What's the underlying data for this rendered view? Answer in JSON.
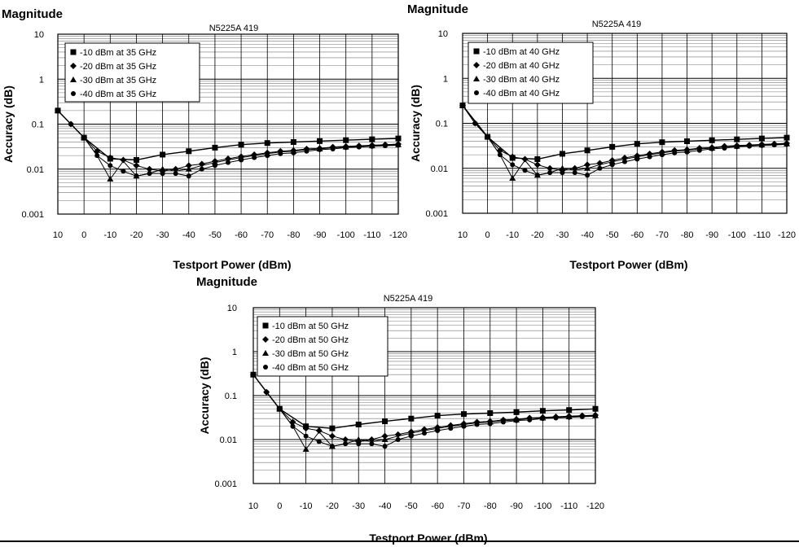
{
  "chart_data": [
    {
      "type": "line",
      "heading": "Magnitude",
      "title": "N5225A 419",
      "xlabel": "Testport Power (dBm)",
      "ylabel": "Accuracy (dB)",
      "x_ticks": [
        "10",
        "0",
        "-10",
        "-20",
        "-30",
        "-40",
        "-50",
        "-60",
        "-70",
        "-80",
        "-90",
        "-100",
        "-110",
        "-120"
      ],
      "y_scale": "log",
      "y_ticks": [
        "10",
        "1",
        "0.1",
        "0.01",
        "0.001"
      ],
      "xlim": [
        10,
        -120
      ],
      "ylim": [
        0.001,
        10
      ],
      "grid": true,
      "legend_position": "top-left",
      "series": [
        {
          "name": "-10 dBm at 35 GHz",
          "marker": "square",
          "x": [
            10,
            0,
            -10,
            -20,
            -30,
            -40,
            -50,
            -60,
            -70,
            -80,
            -90,
            -100,
            -110,
            -120
          ],
          "y": [
            0.2,
            0.05,
            0.017,
            0.016,
            0.021,
            0.025,
            0.03,
            0.035,
            0.038,
            0.04,
            0.042,
            0.044,
            0.046,
            0.048
          ]
        },
        {
          "name": "-20 dBm at 35 GHz",
          "marker": "diamond",
          "x": [
            10,
            5,
            0,
            -5,
            -10,
            -15,
            -20,
            -25,
            -30,
            -35,
            -40,
            -45,
            -50,
            -55,
            -60,
            -65,
            -70,
            -75,
            -80,
            -85,
            -90,
            -95,
            -100,
            -105,
            -110,
            -115,
            -120
          ],
          "y": [
            0.2,
            0.1,
            0.05,
            0.025,
            0.018,
            0.016,
            0.012,
            0.01,
            0.009,
            0.01,
            0.012,
            0.013,
            0.015,
            0.017,
            0.019,
            0.021,
            0.023,
            0.025,
            0.026,
            0.028,
            0.029,
            0.031,
            0.032,
            0.033,
            0.034,
            0.035,
            0.036
          ]
        },
        {
          "name": "-30 dBm at 35 GHz",
          "marker": "triangle",
          "x": [
            10,
            5,
            0,
            -5,
            -10,
            -15,
            -20,
            -25,
            -30,
            -35,
            -40,
            -45,
            -50,
            -55,
            -60,
            -65,
            -70,
            -75,
            -80,
            -85,
            -90,
            -95,
            -100,
            -105,
            -110,
            -115,
            -120
          ],
          "y": [
            0.2,
            0.1,
            0.05,
            0.02,
            0.006,
            0.015,
            0.007,
            0.008,
            0.01,
            0.009,
            0.01,
            0.012,
            0.014,
            0.016,
            0.018,
            0.02,
            0.022,
            0.024,
            0.025,
            0.027,
            0.028,
            0.03,
            0.031,
            0.032,
            0.033,
            0.034,
            0.035
          ]
        },
        {
          "name": "-40 dBm at 35 GHz",
          "marker": "circle",
          "x": [
            10,
            5,
            0,
            -5,
            -10,
            -15,
            -20,
            -25,
            -30,
            -35,
            -40,
            -45,
            -50,
            -55,
            -60,
            -65,
            -70,
            -75,
            -80,
            -85,
            -90,
            -95,
            -100,
            -105,
            -110,
            -115,
            -120
          ],
          "y": [
            0.2,
            0.1,
            0.05,
            0.02,
            0.012,
            0.009,
            0.007,
            0.008,
            0.008,
            0.008,
            0.007,
            0.01,
            0.012,
            0.014,
            0.016,
            0.018,
            0.02,
            0.022,
            0.023,
            0.025,
            0.027,
            0.028,
            0.03,
            0.031,
            0.032,
            0.033,
            0.034
          ]
        }
      ]
    },
    {
      "type": "line",
      "heading": "Magnitude",
      "title": "N5225A 419",
      "xlabel": "Testport Power (dBm)",
      "ylabel": "Accuracy (dB)",
      "x_ticks": [
        "10",
        "0",
        "-10",
        "-20",
        "-30",
        "-40",
        "-50",
        "-60",
        "-70",
        "-80",
        "-90",
        "-100",
        "-110",
        "-120"
      ],
      "y_scale": "log",
      "y_ticks": [
        "10",
        "1",
        "0.1",
        "0.01",
        "0.001"
      ],
      "xlim": [
        10,
        -120
      ],
      "ylim": [
        0.001,
        10
      ],
      "grid": true,
      "legend_position": "top-left",
      "series": [
        {
          "name": "-10 dBm at 40 GHz",
          "marker": "square",
          "x": [
            10,
            0,
            -10,
            -20,
            -30,
            -40,
            -50,
            -60,
            -70,
            -80,
            -90,
            -100,
            -110,
            -120
          ],
          "y": [
            0.25,
            0.05,
            0.017,
            0.016,
            0.021,
            0.025,
            0.03,
            0.035,
            0.038,
            0.04,
            0.042,
            0.044,
            0.046,
            0.048
          ]
        },
        {
          "name": "-20 dBm at 40 GHz",
          "marker": "diamond",
          "x": [
            10,
            5,
            0,
            -5,
            -10,
            -15,
            -20,
            -25,
            -30,
            -35,
            -40,
            -45,
            -50,
            -55,
            -60,
            -65,
            -70,
            -75,
            -80,
            -85,
            -90,
            -95,
            -100,
            -105,
            -110,
            -115,
            -120
          ],
          "y": [
            0.25,
            0.1,
            0.05,
            0.025,
            0.018,
            0.016,
            0.012,
            0.01,
            0.009,
            0.01,
            0.012,
            0.013,
            0.015,
            0.017,
            0.019,
            0.021,
            0.023,
            0.025,
            0.026,
            0.028,
            0.029,
            0.031,
            0.032,
            0.033,
            0.034,
            0.035,
            0.036
          ]
        },
        {
          "name": "-30 dBm at 40 GHz",
          "marker": "triangle",
          "x": [
            10,
            5,
            0,
            -5,
            -10,
            -15,
            -20,
            -25,
            -30,
            -35,
            -40,
            -45,
            -50,
            -55,
            -60,
            -65,
            -70,
            -75,
            -80,
            -85,
            -90,
            -95,
            -100,
            -105,
            -110,
            -115,
            -120
          ],
          "y": [
            0.25,
            0.1,
            0.05,
            0.02,
            0.006,
            0.015,
            0.007,
            0.008,
            0.01,
            0.009,
            0.01,
            0.012,
            0.014,
            0.016,
            0.018,
            0.02,
            0.022,
            0.024,
            0.025,
            0.027,
            0.028,
            0.03,
            0.031,
            0.032,
            0.033,
            0.034,
            0.035
          ]
        },
        {
          "name": "-40 dBm at 40 GHz",
          "marker": "circle",
          "x": [
            10,
            5,
            0,
            -5,
            -10,
            -15,
            -20,
            -25,
            -30,
            -35,
            -40,
            -45,
            -50,
            -55,
            -60,
            -65,
            -70,
            -75,
            -80,
            -85,
            -90,
            -95,
            -100,
            -105,
            -110,
            -115,
            -120
          ],
          "y": [
            0.25,
            0.1,
            0.05,
            0.02,
            0.012,
            0.009,
            0.007,
            0.008,
            0.008,
            0.008,
            0.007,
            0.01,
            0.012,
            0.014,
            0.016,
            0.018,
            0.02,
            0.022,
            0.023,
            0.025,
            0.027,
            0.028,
            0.03,
            0.031,
            0.032,
            0.033,
            0.034
          ]
        }
      ]
    },
    {
      "type": "line",
      "heading": "Magnitude",
      "title": "N5225A 419",
      "xlabel": "Testport Power (dBm)",
      "ylabel": "Accuracy (dB)",
      "x_ticks": [
        "10",
        "0",
        "-10",
        "-20",
        "-30",
        "-40",
        "-50",
        "-60",
        "-70",
        "-80",
        "-90",
        "-100",
        "-110",
        "-120"
      ],
      "y_scale": "log",
      "y_ticks": [
        "10",
        "1",
        "0.1",
        "0.01",
        "0.001"
      ],
      "xlim": [
        10,
        -120
      ],
      "ylim": [
        0.001,
        10
      ],
      "grid": true,
      "legend_position": "top-left",
      "series": [
        {
          "name": "-10 dBm at 50 GHz",
          "marker": "square",
          "x": [
            10,
            0,
            -10,
            -20,
            -30,
            -40,
            -50,
            -60,
            -70,
            -80,
            -90,
            -100,
            -110,
            -120
          ],
          "y": [
            0.3,
            0.05,
            0.02,
            0.018,
            0.022,
            0.026,
            0.03,
            0.035,
            0.038,
            0.04,
            0.042,
            0.045,
            0.047,
            0.05
          ]
        },
        {
          "name": "-20 dBm at 50 GHz",
          "marker": "diamond",
          "x": [
            10,
            5,
            0,
            -5,
            -10,
            -15,
            -20,
            -25,
            -30,
            -35,
            -40,
            -45,
            -50,
            -55,
            -60,
            -65,
            -70,
            -75,
            -80,
            -85,
            -90,
            -95,
            -100,
            -105,
            -110,
            -115,
            -120
          ],
          "y": [
            0.3,
            0.12,
            0.05,
            0.025,
            0.018,
            0.016,
            0.012,
            0.01,
            0.009,
            0.01,
            0.012,
            0.013,
            0.015,
            0.017,
            0.019,
            0.021,
            0.023,
            0.025,
            0.026,
            0.028,
            0.029,
            0.031,
            0.032,
            0.033,
            0.034,
            0.035,
            0.036
          ]
        },
        {
          "name": "-30 dBm at 50 GHz",
          "marker": "triangle",
          "x": [
            10,
            5,
            0,
            -5,
            -10,
            -15,
            -20,
            -25,
            -30,
            -35,
            -40,
            -45,
            -50,
            -55,
            -60,
            -65,
            -70,
            -75,
            -80,
            -85,
            -90,
            -95,
            -100,
            -105,
            -110,
            -115,
            -120
          ],
          "y": [
            0.3,
            0.12,
            0.05,
            0.02,
            0.006,
            0.015,
            0.007,
            0.008,
            0.01,
            0.009,
            0.01,
            0.012,
            0.014,
            0.016,
            0.018,
            0.02,
            0.022,
            0.024,
            0.025,
            0.027,
            0.028,
            0.03,
            0.031,
            0.032,
            0.033,
            0.034,
            0.035
          ]
        },
        {
          "name": "-40 dBm at 50 GHz",
          "marker": "circle",
          "x": [
            10,
            5,
            0,
            -5,
            -10,
            -15,
            -20,
            -25,
            -30,
            -35,
            -40,
            -45,
            -50,
            -55,
            -60,
            -65,
            -70,
            -75,
            -80,
            -85,
            -90,
            -95,
            -100,
            -105,
            -110,
            -115,
            -120
          ],
          "y": [
            0.3,
            0.12,
            0.05,
            0.02,
            0.012,
            0.009,
            0.007,
            0.008,
            0.008,
            0.008,
            0.007,
            0.01,
            0.012,
            0.014,
            0.016,
            0.018,
            0.02,
            0.022,
            0.023,
            0.025,
            0.027,
            0.028,
            0.03,
            0.031,
            0.032,
            0.033,
            0.034
          ]
        }
      ]
    }
  ]
}
